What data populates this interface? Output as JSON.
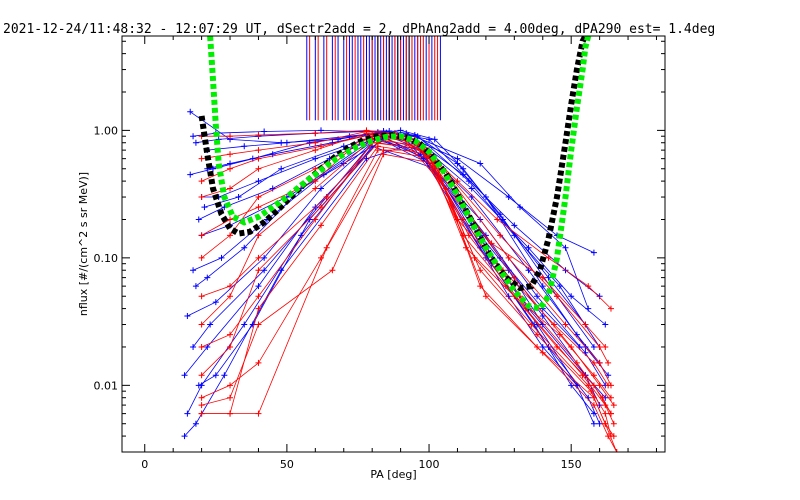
{
  "chart_data": {
    "type": "line",
    "title": "2021-12-24/11:48:32 - 12:07:29 UT, dSectr2add = 2, dPhAng2add = 4.00deg, dPA290_est=    1.4deg",
    "xlabel": "PA [deg]",
    "ylabel": "nflux [#/(cm^2 s sr MeV)]",
    "xlim": [
      -8,
      183
    ],
    "ylim": [
      0.003,
      5.5
    ],
    "yscale": "log",
    "x_ticks": [
      0,
      50,
      100,
      150
    ],
    "x_tick_labels": [
      "0",
      "50",
      "100",
      "150"
    ],
    "y_ticks": [
      0.01,
      0.1,
      1.0
    ],
    "y_tick_labels": [
      "0.01",
      "0.10",
      "1.00"
    ],
    "colors": {
      "red": "#ff0000",
      "blue": "#0000ff",
      "fit_black": "#000000",
      "fit_green": "#00ee00"
    },
    "series": [
      {
        "color": "blue",
        "role": "pitch-angle-distributions",
        "curves": [
          {
            "x": [
              17,
              25,
              42,
              62,
              82,
              92,
              110,
              128,
              145,
              158
            ],
            "y": [
              0.9,
              0.95,
              0.98,
              1.0,
              0.97,
              0.9,
              0.6,
              0.3,
              0.15,
              0.11
            ]
          },
          {
            "x": [
              18,
              26,
              40,
              60,
              84,
              95,
              112,
              130,
              148,
              160
            ],
            "y": [
              0.8,
              0.85,
              0.9,
              0.95,
              0.99,
              0.85,
              0.45,
              0.18,
              0.08,
              0.05
            ]
          },
          {
            "x": [
              16,
              24,
              38,
              58,
              82,
              96,
              115,
              135,
              150,
              162
            ],
            "y": [
              0.45,
              0.5,
              0.6,
              0.8,
              0.95,
              0.8,
              0.35,
              0.12,
              0.05,
              0.03
            ]
          },
          {
            "x": [
              19,
              28,
              45,
              65,
              84,
              98,
              115,
              135,
              152,
              160
            ],
            "y": [
              0.2,
              0.25,
              0.35,
              0.6,
              0.93,
              0.7,
              0.3,
              0.08,
              0.025,
              0.015
            ]
          },
          {
            "x": [
              17,
              27,
              43,
              63,
              83,
              97,
              118,
              138,
              155,
              162
            ],
            "y": [
              0.08,
              0.1,
              0.2,
              0.45,
              0.9,
              0.65,
              0.2,
              0.05,
              0.018,
              0.01
            ]
          },
          {
            "x": [
              15,
              25,
              42,
              62,
              82,
              99,
              120,
              140,
              155,
              160
            ],
            "y": [
              0.035,
              0.045,
              0.1,
              0.35,
              0.88,
              0.6,
              0.15,
              0.035,
              0.012,
              0.007
            ]
          },
          {
            "x": [
              14,
              22,
              40,
              60,
              83,
              100,
              118,
              137,
              150,
              158
            ],
            "y": [
              0.012,
              0.02,
              0.06,
              0.25,
              0.85,
              0.55,
              0.12,
              0.03,
              0.01,
              0.006
            ]
          },
          {
            "x": [
              15,
              20,
              35,
              55,
              80,
              102,
              122,
              142,
              156,
              160
            ],
            "y": [
              0.006,
              0.01,
              0.03,
              0.15,
              0.75,
              0.5,
              0.09,
              0.02,
              0.008,
              0.005
            ]
          },
          {
            "x": [
              14,
              18,
              28,
              48,
              78,
              95,
              115,
              138,
              152,
              158
            ],
            "y": [
              0.004,
              0.005,
              0.012,
              0.08,
              0.6,
              0.8,
              0.18,
              0.03,
              0.01,
              0.005
            ]
          },
          {
            "x": [
              20,
              30,
              50,
              70,
              88,
              100,
              120,
              140,
              155,
              163
            ],
            "y": [
              0.15,
              0.18,
              0.3,
              0.55,
              0.95,
              0.85,
              0.3,
              0.06,
              0.02,
              0.012
            ]
          },
          {
            "x": [
              16,
              30,
              48,
              68,
              86,
              92,
              118,
              132,
              148,
              156
            ],
            "y": [
              1.4,
              0.85,
              0.8,
              0.85,
              0.99,
              0.95,
              0.55,
              0.25,
              0.12,
              0.04
            ]
          },
          {
            "x": [
              21,
              33,
              48,
              70,
              85,
              95,
              110,
              125,
              145,
              158
            ],
            "y": [
              0.25,
              0.3,
              0.5,
              0.75,
              0.96,
              0.92,
              0.55,
              0.22,
              0.05,
              0.02
            ]
          },
          {
            "x": [
              18,
              22,
              35,
              55,
              80,
              97,
              115,
              135,
              155,
              162
            ],
            "y": [
              0.06,
              0.07,
              0.12,
              0.35,
              0.85,
              0.7,
              0.18,
              0.04,
              0.012,
              0.008
            ]
          },
          {
            "x": [
              19,
              25,
              38,
              58,
              84,
              98,
              120,
              128,
              140,
              152
            ],
            "y": [
              0.01,
              0.012,
              0.03,
              0.2,
              0.9,
              0.6,
              0.1,
              0.05,
              0.02,
              0.01
            ]
          },
          {
            "x": [
              22,
              35,
              50,
              72,
              90,
              102,
              112,
              126,
              142,
              155
            ],
            "y": [
              0.7,
              0.75,
              0.8,
              0.9,
              1.0,
              0.85,
              0.5,
              0.2,
              0.07,
              0.03
            ]
          },
          {
            "x": [
              20,
              26,
              40,
              60,
              84,
              95,
              108,
              118,
              128,
              140
            ],
            "y": [
              0.3,
              0.3,
              0.4,
              0.6,
              0.9,
              0.8,
              0.4,
              0.15,
              0.08,
              0.03
            ]
          },
          {
            "x": [
              17,
              23,
              42,
              64,
              82,
              92,
              112,
              125,
              140,
              153
            ],
            "y": [
              0.02,
              0.03,
              0.08,
              0.3,
              0.9,
              0.85,
              0.25,
              0.1,
              0.04,
              0.02
            ]
          },
          {
            "x": [
              22,
              30,
              45,
              66,
              84,
              96,
              114,
              130,
              146,
              160
            ],
            "y": [
              0.5,
              0.55,
              0.65,
              0.8,
              0.97,
              0.9,
              0.4,
              0.15,
              0.06,
              0.02
            ]
          }
        ]
      },
      {
        "color": "red",
        "role": "pitch-angle-distributions",
        "curves": [
          {
            "x": [
              20,
              30,
              40,
              60,
              78,
              88,
              105,
              125,
              145,
              160,
              163
            ],
            "y": [
              0.9,
              0.9,
              0.92,
              0.95,
              1.0,
              0.95,
              0.5,
              0.15,
              0.05,
              0.02,
              0.015
            ]
          },
          {
            "x": [
              20,
              30,
              40,
              60,
              78,
              92,
              108,
              128,
              148,
              160,
              164
            ],
            "y": [
              0.6,
              0.65,
              0.7,
              0.8,
              0.98,
              0.9,
              0.4,
              0.1,
              0.03,
              0.015,
              0.01
            ]
          },
          {
            "x": [
              20,
              30,
              40,
              60,
              78,
              95,
              110,
              130,
              150,
              160,
              165
            ],
            "y": [
              0.3,
              0.35,
              0.5,
              0.7,
              0.95,
              0.85,
              0.3,
              0.07,
              0.02,
              0.01,
              0.007
            ]
          },
          {
            "x": [
              20,
              30,
              40,
              60,
              80,
              96,
              112,
              132,
              152,
              161,
              164
            ],
            "y": [
              0.1,
              0.15,
              0.3,
              0.5,
              0.9,
              0.8,
              0.2,
              0.05,
              0.015,
              0.008,
              0.006
            ]
          },
          {
            "x": [
              20,
              30,
              40,
              60,
              80,
              98,
              114,
              134,
              154,
              162,
              165
            ],
            "y": [
              0.03,
              0.05,
              0.15,
              0.35,
              0.85,
              0.75,
              0.15,
              0.04,
              0.012,
              0.007,
              0.005
            ]
          },
          {
            "x": [
              20,
              30,
              40,
              62,
              82,
              100,
              116,
              136,
              156,
              162,
              164
            ],
            "y": [
              0.012,
              0.02,
              0.08,
              0.25,
              0.8,
              0.7,
              0.1,
              0.03,
              0.01,
              0.006,
              0.004
            ]
          },
          {
            "x": [
              20,
              30,
              40,
              62,
              82,
              100,
              118,
              138,
              157,
              162,
              165
            ],
            "y": [
              0.006,
              0.006,
              0.04,
              0.18,
              0.75,
              0.65,
              0.08,
              0.025,
              0.009,
              0.005,
              0.004
            ]
          },
          {
            "x": [
              20,
              30,
              40,
              64,
              84,
              102,
              118,
              138,
              158,
              162,
              166
            ],
            "y": [
              0.006,
              0.006,
              0.006,
              0.12,
              0.7,
              0.6,
              0.06,
              0.02,
              0.008,
              0.005,
              0.003
            ]
          },
          {
            "x": [
              20,
              30,
              40,
              66,
              84,
              102,
              120,
              140,
              158,
              163,
              166
            ],
            "y": [
              0.007,
              0.008,
              0.03,
              0.08,
              0.65,
              0.55,
              0.05,
              0.018,
              0.007,
              0.004,
              0.003
            ]
          },
          {
            "x": [
              20,
              30,
              40,
              62,
              80,
              96,
              110,
              124,
              142,
              156,
              164
            ],
            "y": [
              0.4,
              0.5,
              0.6,
              0.75,
              0.93,
              0.8,
              0.4,
              0.2,
              0.1,
              0.06,
              0.04
            ]
          },
          {
            "x": [
              20,
              30,
              40,
              60,
              76,
              90,
              106,
              122,
              140,
              155,
              162
            ],
            "y": [
              0.15,
              0.2,
              0.25,
              0.4,
              0.85,
              0.9,
              0.35,
              0.13,
              0.07,
              0.03,
              0.02
            ]
          },
          {
            "x": [
              20,
              30,
              40,
              64,
              82,
              99,
              113,
              130,
              146,
              158,
              164
            ],
            "y": [
              0.05,
              0.06,
              0.1,
              0.3,
              0.88,
              0.7,
              0.12,
              0.05,
              0.025,
              0.012,
              0.008
            ]
          },
          {
            "x": [
              20,
              30,
              40,
              60,
              80,
              97,
              110,
              126,
              144,
              158,
              163
            ],
            "y": [
              0.02,
              0.025,
              0.05,
              0.2,
              0.8,
              0.72,
              0.2,
              0.08,
              0.03,
              0.015,
              0.01
            ]
          },
          {
            "x": [
              20,
              30,
              40,
              62,
              82,
              98,
              112,
              127,
              145,
              158,
              164
            ],
            "y": [
              0.008,
              0.01,
              0.015,
              0.1,
              0.7,
              0.7,
              0.15,
              0.06,
              0.02,
              0.01,
              0.006
            ]
          }
        ]
      },
      {
        "color": "fit_black",
        "role": "fit-curve",
        "x": [
          20,
          22,
          24,
          27,
          30,
          33,
          37,
          42,
          47,
          52,
          57,
          62,
          67,
          72,
          77,
          82,
          87,
          92,
          97,
          102,
          107,
          112,
          117,
          122,
          127,
          132,
          136,
          139,
          142,
          145,
          148,
          150,
          152,
          154,
          155
        ],
        "y": [
          1.3,
          0.65,
          0.35,
          0.22,
          0.17,
          0.155,
          0.16,
          0.19,
          0.24,
          0.31,
          0.4,
          0.5,
          0.62,
          0.74,
          0.84,
          0.9,
          0.92,
          0.88,
          0.78,
          0.6,
          0.42,
          0.26,
          0.16,
          0.1,
          0.07,
          0.058,
          0.06,
          0.08,
          0.14,
          0.3,
          0.8,
          1.6,
          3.0,
          5.0,
          5.5
        ]
      },
      {
        "color": "fit_green",
        "role": "fit-curve",
        "x": [
          23,
          24,
          25,
          26,
          28,
          31,
          35,
          40,
          45,
          50,
          55,
          60,
          65,
          70,
          75,
          80,
          85,
          90,
          95,
          100,
          105,
          110,
          115,
          120,
          125,
          130,
          135,
          139,
          142,
          145,
          148,
          150,
          152,
          154,
          155,
          156
        ],
        "y": [
          5.5,
          2.5,
          1.1,
          0.55,
          0.3,
          0.21,
          0.19,
          0.21,
          0.25,
          0.3,
          0.37,
          0.45,
          0.55,
          0.65,
          0.75,
          0.83,
          0.89,
          0.9,
          0.83,
          0.68,
          0.48,
          0.31,
          0.19,
          0.12,
          0.08,
          0.055,
          0.042,
          0.04,
          0.05,
          0.1,
          0.3,
          0.7,
          1.5,
          3.0,
          4.5,
          5.5
        ]
      }
    ],
    "vertical_markers": {
      "role": "sector-lines",
      "y_from": 1.2,
      "y_to": 5.5,
      "blue_x": [
        57,
        60,
        63,
        66,
        68,
        70,
        72,
        73,
        75,
        76,
        78,
        79,
        80,
        81,
        82,
        83,
        84,
        85,
        86,
        87,
        88,
        89,
        90,
        91,
        92,
        93,
        94,
        95,
        96,
        97,
        99,
        101,
        104
      ],
      "red_x": [
        58,
        61,
        64,
        67,
        71,
        74,
        77,
        80,
        82,
        84,
        86,
        88,
        90,
        92,
        94,
        96,
        97,
        98,
        100,
        102,
        103
      ],
      "black_x": [
        82,
        86,
        89,
        93
      ]
    }
  }
}
